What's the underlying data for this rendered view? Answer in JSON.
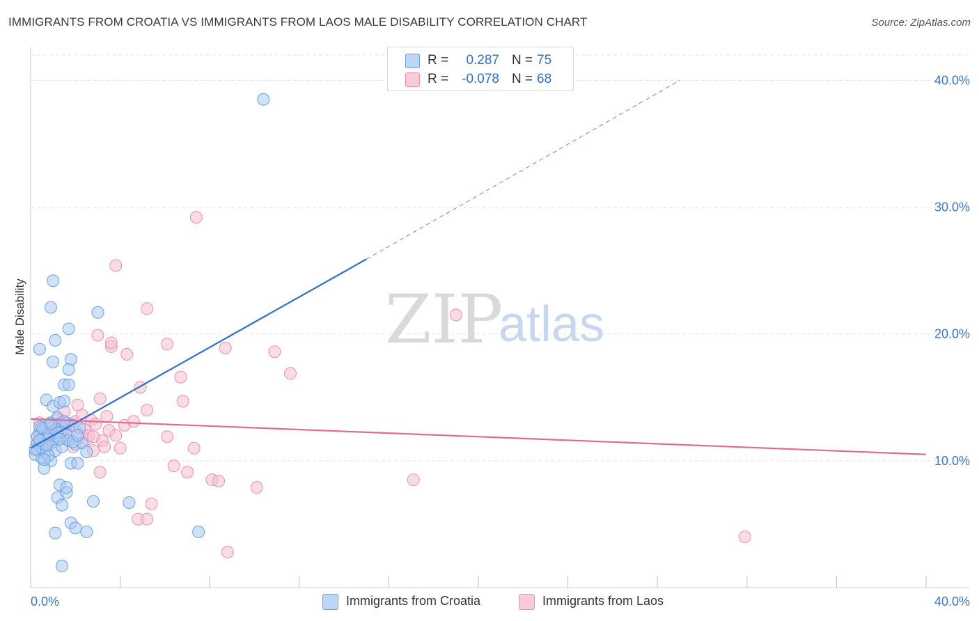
{
  "title": "IMMIGRANTS FROM CROATIA VS IMMIGRANTS FROM LAOS MALE DISABILITY CORRELATION CHART",
  "source": "Source: ZipAtlas.com",
  "watermark": {
    "zip": "ZIP",
    "atlas": "atlas"
  },
  "legend": {
    "croatia": {
      "r_label": "R =",
      "r_value": "0.287",
      "n_label": "N =",
      "n_value": "75"
    },
    "laos": {
      "r_label": "R =",
      "r_value": "-0.078",
      "n_label": "N =",
      "n_value": "68"
    }
  },
  "colors": {
    "croatia_fill": "#a9c9f2",
    "croatia_stroke": "#6aa0e0",
    "croatia_line": "#2f6fce",
    "laos_fill": "#f7bfd0",
    "laos_stroke": "#ec8fab",
    "laos_line": "#e06a94",
    "axis_text": "#3f75c8",
    "grid": "#e3e3e3"
  },
  "chart_data": {
    "type": "scatter",
    "title": "IMMIGRANTS FROM CROATIA VS IMMIGRANTS FROM LAOS MALE DISABILITY CORRELATION CHART",
    "xlabel": "",
    "ylabel": "Male Disability",
    "xlim": [
      0,
      40
    ],
    "ylim": [
      0,
      42
    ],
    "x_tick_labels": [
      "0.0%",
      "40.0%"
    ],
    "y_ticks": [
      10,
      20,
      30,
      40
    ],
    "y_tick_labels": [
      "10.0%",
      "20.0%",
      "30.0%",
      "40.0%"
    ],
    "grid": true,
    "legend_position": "top-center",
    "series": [
      {
        "name": "Immigrants from Croatia",
        "r": 0.287,
        "n": 75,
        "trend": {
          "x0": 0,
          "y0": 11.0,
          "x1": 15.0,
          "y1": 25.9,
          "dashed_to_x": 29.0,
          "dashed_to_y": 40.0
        },
        "points": [
          [
            0.2,
            10.5
          ],
          [
            0.3,
            10.9
          ],
          [
            0.3,
            11.4
          ],
          [
            0.4,
            12.2
          ],
          [
            0.4,
            12.7
          ],
          [
            0.5,
            10.2
          ],
          [
            0.5,
            11.0
          ],
          [
            0.6,
            11.8
          ],
          [
            0.6,
            12.5
          ],
          [
            0.7,
            10.6
          ],
          [
            0.7,
            14.8
          ],
          [
            0.8,
            11.2
          ],
          [
            0.8,
            12.1
          ],
          [
            0.9,
            13.0
          ],
          [
            0.9,
            10.0
          ],
          [
            1.0,
            11.5
          ],
          [
            1.0,
            14.3
          ],
          [
            1.1,
            12.4
          ],
          [
            1.1,
            10.8
          ],
          [
            1.2,
            13.4
          ],
          [
            1.2,
            11.9
          ],
          [
            1.3,
            12.9
          ],
          [
            1.3,
            14.6
          ],
          [
            1.4,
            11.1
          ],
          [
            1.4,
            12.3
          ],
          [
            1.5,
            16.0
          ],
          [
            1.5,
            14.7
          ],
          [
            1.6,
            13.0
          ],
          [
            1.6,
            12.0
          ],
          [
            1.7,
            11.6
          ],
          [
            1.7,
            16.0
          ],
          [
            1.8,
            9.8
          ],
          [
            1.9,
            12.8
          ],
          [
            2.0,
            11.3
          ],
          [
            2.1,
            9.8
          ],
          [
            2.2,
            12.6
          ],
          [
            2.3,
            11.4
          ],
          [
            2.5,
            10.7
          ],
          [
            0.4,
            18.8
          ],
          [
            0.9,
            22.1
          ],
          [
            1.0,
            24.2
          ],
          [
            1.1,
            19.5
          ],
          [
            1.0,
            17.8
          ],
          [
            1.7,
            20.4
          ],
          [
            1.8,
            18.0
          ],
          [
            1.7,
            17.2
          ],
          [
            3.0,
            21.7
          ],
          [
            0.6,
            9.4
          ],
          [
            1.2,
            7.1
          ],
          [
            1.4,
            6.5
          ],
          [
            1.3,
            8.1
          ],
          [
            1.6,
            7.5
          ],
          [
            1.6,
            7.9
          ],
          [
            1.8,
            5.1
          ],
          [
            2.0,
            4.7
          ],
          [
            2.5,
            4.4
          ],
          [
            1.1,
            4.3
          ],
          [
            2.8,
            6.8
          ],
          [
            4.4,
            6.7
          ],
          [
            7.5,
            4.4
          ],
          [
            1.4,
            1.7
          ],
          [
            10.4,
            38.5
          ],
          [
            0.3,
            11.9
          ],
          [
            0.5,
            12.6
          ],
          [
            0.7,
            11.2
          ],
          [
            0.8,
            10.4
          ],
          [
            1.2,
            12.2
          ],
          [
            1.5,
            13.1
          ],
          [
            1.9,
            11.5
          ],
          [
            0.2,
            10.9
          ],
          [
            0.6,
            10.1
          ],
          [
            0.9,
            12.9
          ],
          [
            1.3,
            11.7
          ],
          [
            2.1,
            12.0
          ],
          [
            0.4,
            11.6
          ]
        ]
      },
      {
        "name": "Immigrants from Laos",
        "r": -0.078,
        "n": 68,
        "trend": {
          "x0": 0,
          "y0": 13.3,
          "x1": 40,
          "y1": 10.5
        },
        "points": [
          [
            0.3,
            11.9
          ],
          [
            0.5,
            12.4
          ],
          [
            0.6,
            11.3
          ],
          [
            0.8,
            12.8
          ],
          [
            0.9,
            12.2
          ],
          [
            1.1,
            12.0
          ],
          [
            1.2,
            13.3
          ],
          [
            1.3,
            11.8
          ],
          [
            1.4,
            12.6
          ],
          [
            1.5,
            13.9
          ],
          [
            1.6,
            12.3
          ],
          [
            1.7,
            11.6
          ],
          [
            1.8,
            12.9
          ],
          [
            1.9,
            11.1
          ],
          [
            2.0,
            13.1
          ],
          [
            2.1,
            14.4
          ],
          [
            2.2,
            12.1
          ],
          [
            2.3,
            13.6
          ],
          [
            2.4,
            12.5
          ],
          [
            2.5,
            11.7
          ],
          [
            2.6,
            12.0
          ],
          [
            2.7,
            13.2
          ],
          [
            2.8,
            10.8
          ],
          [
            2.9,
            12.9
          ],
          [
            3.0,
            19.9
          ],
          [
            3.1,
            14.9
          ],
          [
            3.2,
            11.6
          ],
          [
            3.3,
            11.1
          ],
          [
            3.4,
            13.5
          ],
          [
            3.5,
            12.4
          ],
          [
            3.6,
            19.0
          ],
          [
            3.6,
            19.3
          ],
          [
            3.8,
            12.0
          ],
          [
            4.0,
            11.0
          ],
          [
            4.2,
            12.8
          ],
          [
            4.3,
            18.4
          ],
          [
            4.6,
            13.1
          ],
          [
            4.9,
            15.8
          ],
          [
            5.2,
            14.0
          ],
          [
            5.2,
            22.0
          ],
          [
            5.4,
            6.6
          ],
          [
            4.8,
            5.4
          ],
          [
            5.2,
            5.4
          ],
          [
            6.1,
            11.9
          ],
          [
            6.1,
            19.2
          ],
          [
            6.4,
            9.6
          ],
          [
            6.7,
            16.6
          ],
          [
            6.8,
            14.7
          ],
          [
            7.0,
            9.1
          ],
          [
            7.3,
            11.0
          ],
          [
            7.4,
            29.2
          ],
          [
            8.1,
            8.5
          ],
          [
            8.4,
            8.4
          ],
          [
            8.7,
            18.9
          ],
          [
            8.8,
            2.8
          ],
          [
            10.1,
            7.9
          ],
          [
            10.9,
            18.6
          ],
          [
            11.6,
            16.9
          ],
          [
            3.8,
            25.4
          ],
          [
            17.1,
            8.5
          ],
          [
            19.0,
            21.5
          ],
          [
            31.9,
            4.0
          ],
          [
            3.1,
            9.1
          ],
          [
            1.0,
            12.7
          ],
          [
            0.7,
            12.1
          ],
          [
            1.6,
            12.9
          ],
          [
            2.8,
            11.9
          ],
          [
            0.4,
            13.0
          ]
        ]
      }
    ]
  },
  "axis": {
    "ylabel": "Male Disability",
    "x_left_label": "0.0%",
    "x_right_label": "40.0%"
  },
  "bottom_legend": {
    "croatia": "Immigrants from Croatia",
    "laos": "Immigrants from Laos"
  }
}
